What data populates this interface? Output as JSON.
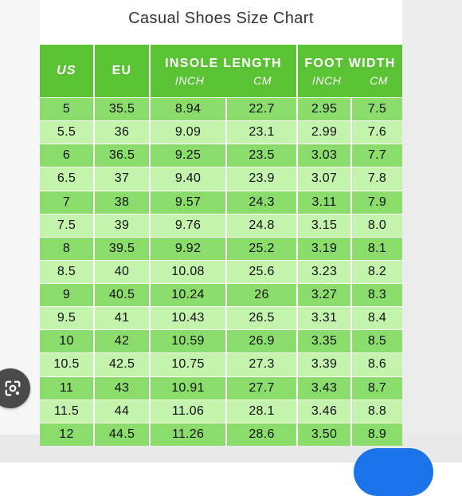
{
  "title": "Casual Shoes Size Chart",
  "headers": {
    "us": "US",
    "eu": "EU",
    "insole": "INSOLE LENGTH",
    "foot": "FOOT WIDTH",
    "inch": "INCH",
    "cm": "CM"
  },
  "rows": [
    [
      "5",
      "35.5",
      "8.94",
      "22.7",
      "2.95",
      "7.5"
    ],
    [
      "5.5",
      "36",
      "9.09",
      "23.1",
      "2.99",
      "7.6"
    ],
    [
      "6",
      "36.5",
      "9.25",
      "23.5",
      "3.03",
      "7.7"
    ],
    [
      "6.5",
      "37",
      "9.40",
      "23.9",
      "3.07",
      "7.8"
    ],
    [
      "7",
      "38",
      "9.57",
      "24.3",
      "3.11",
      "7.9"
    ],
    [
      "7.5",
      "39",
      "9.76",
      "24.8",
      "3.15",
      "8.0"
    ],
    [
      "8",
      "39.5",
      "9.92",
      "25.2",
      "3.19",
      "8.1"
    ],
    [
      "8.5",
      "40",
      "10.08",
      "25.6",
      "3.23",
      "8.2"
    ],
    [
      "9",
      "40.5",
      "10.24",
      "26",
      "3.27",
      "8.3"
    ],
    [
      "9.5",
      "41",
      "10.43",
      "26.5",
      "3.31",
      "8.4"
    ],
    [
      "10",
      "42",
      "10.59",
      "26.9",
      "3.35",
      "8.5"
    ],
    [
      "10.5",
      "42.5",
      "10.75",
      "27.3",
      "3.39",
      "8.6"
    ],
    [
      "11",
      "43",
      "10.91",
      "27.7",
      "3.43",
      "8.7"
    ],
    [
      "11.5",
      "44",
      "11.06",
      "28.1",
      "3.46",
      "8.8"
    ],
    [
      "12",
      "44.5",
      "11.26",
      "28.6",
      "3.50",
      "8.9"
    ]
  ],
  "colors": {
    "header": "#5bc236",
    "row_dark": "#8bdd6b",
    "row_light": "#c3f3ad"
  },
  "icons": {
    "lens": "google-lens-icon"
  }
}
